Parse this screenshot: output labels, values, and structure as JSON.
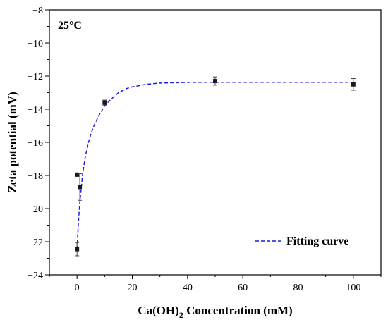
{
  "chart_data": {
    "type": "scatter",
    "annotation": "25°C",
    "xlabel": {
      "prefix": "Ca(OH)",
      "subscript": "2",
      "suffix": " Concentration (mM)"
    },
    "ylabel": "Zeta potential (mV)",
    "xlim": [
      -10,
      110
    ],
    "ylim": [
      -24,
      -8
    ],
    "xticks": [
      0,
      20,
      40,
      60,
      80,
      100
    ],
    "yticks": [
      -24,
      -22,
      -20,
      -18,
      -16,
      -14,
      -12,
      -10,
      -8
    ],
    "x_minor_step": 10,
    "y_minor_step": 1,
    "grid": false,
    "legend_position": "bottom-right",
    "series": [
      {
        "kind": "points",
        "marker": "square",
        "color": "#1a1a1a",
        "points": [
          {
            "x": 0,
            "y": -22.45,
            "err": 0.4
          },
          {
            "x": 0,
            "y": -17.95,
            "err": 0.1
          },
          {
            "x": 1,
            "y": -18.7,
            "err": 0.8
          },
          {
            "x": 10,
            "y": -13.6,
            "err": 0.15
          },
          {
            "x": 50,
            "y": -12.3,
            "err": 0.25
          },
          {
            "x": 100,
            "y": -12.5,
            "err": 0.35
          }
        ]
      },
      {
        "kind": "line",
        "name": "Fitting curve",
        "style": "dashed",
        "color": "#1c1cdc",
        "x": [
          0,
          0.5,
          1,
          2,
          3,
          4,
          5,
          6,
          8,
          10,
          12,
          15,
          18,
          20,
          25,
          30,
          35,
          40,
          50,
          60,
          70,
          80,
          90,
          100
        ],
        "y": [
          -22.45,
          -20.85,
          -19.65,
          -17.95,
          -16.85,
          -16.1,
          -15.5,
          -15.05,
          -14.35,
          -13.8,
          -13.45,
          -13.0,
          -12.75,
          -12.65,
          -12.5,
          -12.42,
          -12.4,
          -12.38,
          -12.37,
          -12.37,
          -12.37,
          -12.37,
          -12.37,
          -12.37
        ]
      }
    ]
  }
}
